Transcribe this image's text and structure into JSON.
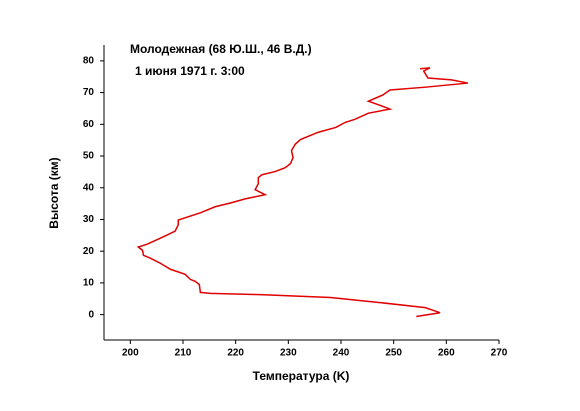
{
  "chart_data": {
    "type": "line",
    "title": "Молодежная (68 Ю.Ш., 46 В.Д.)",
    "subtitle": "1 июня 1971 г. 3:00",
    "x_label": "Температура (K)",
    "y_label": "Высота (км)",
    "xlim": [
      195,
      270
    ],
    "ylim": [
      -8,
      85
    ],
    "xticks": [
      200,
      210,
      220,
      230,
      240,
      250,
      260,
      270
    ],
    "yticks": [
      0,
      10,
      20,
      30,
      40,
      50,
      60,
      70,
      80
    ],
    "grid": false,
    "series": [
      {
        "color": "#e00000",
        "x": [
          254.3,
          258.8,
          256,
          247.4,
          238,
          224.7,
          215.2,
          213.3,
          213.1,
          212.3,
          211.4,
          210.4,
          207.6,
          205.7,
          203.8,
          202.5,
          202.3,
          201.5,
          203.2,
          205.7,
          208.5,
          209.1,
          209.1,
          213.3,
          216.1,
          219,
          221.8,
          225.6,
          223.7,
          224.3,
          224.3,
          225,
          227.5,
          229.4,
          230.4,
          230.9,
          230.6,
          231.3,
          232.3,
          235.7,
          239,
          240.8,
          242.7,
          245.2,
          249.3,
          247.4,
          245.2,
          247.9,
          249.3,
          256,
          264.1,
          261,
          256.5,
          255.7,
          256.9,
          255
        ],
        "values": [
          -0.6,
          0.6,
          2.2,
          3.8,
          5.4,
          6.3,
          6.7,
          7,
          9.5,
          10.5,
          11.1,
          12.7,
          14.3,
          16.2,
          17.8,
          18.7,
          20.3,
          21.3,
          22.2,
          24.1,
          26.3,
          28.3,
          29.8,
          32.1,
          34,
          35.2,
          36.5,
          37.8,
          39.4,
          41.3,
          43.2,
          44.1,
          45.1,
          46.3,
          47.6,
          49.5,
          51.7,
          53.7,
          55.2,
          57.5,
          59,
          60.6,
          61.6,
          63.5,
          64.8,
          66,
          67.3,
          69.2,
          70.8,
          71.7,
          73,
          74,
          74.6,
          76.8,
          77.8,
          77.5
        ]
      }
    ]
  }
}
